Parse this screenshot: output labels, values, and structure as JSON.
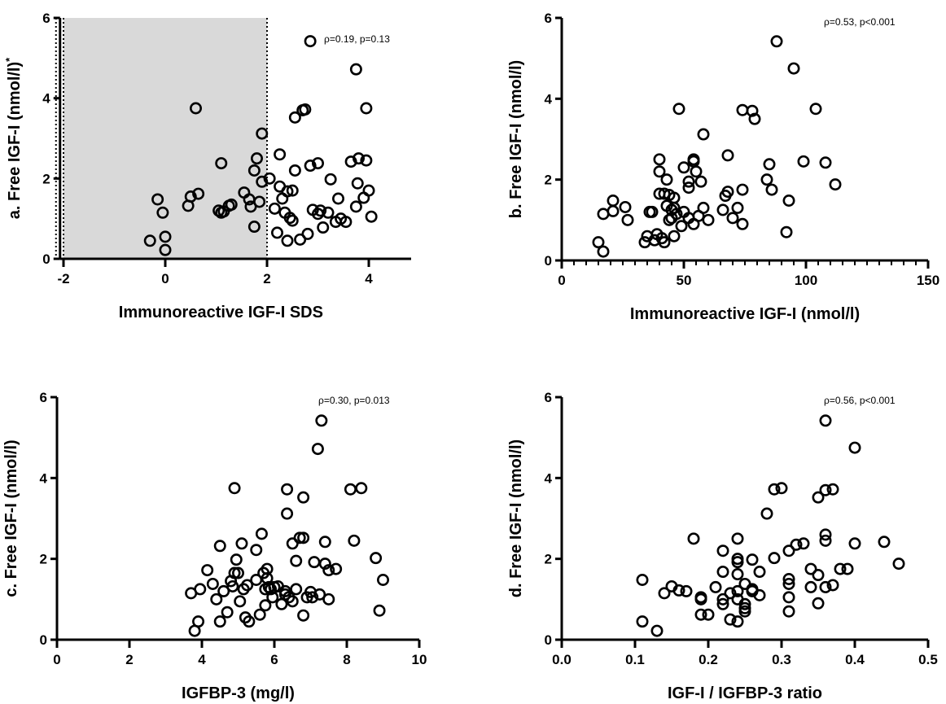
{
  "chart_data": [
    {
      "type": "scatter",
      "id": "a",
      "xlabel": "Immunoreactive IGF-I SDS",
      "ylabel": "a. Free IGF-I (nmol/l)",
      "ylabel_superscript": "*",
      "annotation": "ρ=0.19, p=0.13",
      "xlim": [
        -2.1,
        5.0
      ],
      "ylim": [
        0,
        6
      ],
      "xticks": [
        -2,
        0,
        2,
        4
      ],
      "yticks": [
        0,
        2,
        4,
        6
      ],
      "x_minor_ticks": false,
      "shaded_region": [
        -2,
        2
      ],
      "shaded_color": "#d9d9d9",
      "grid": false,
      "points": [
        {
          "x": -0.15,
          "y": 1.48
        },
        {
          "x": -0.05,
          "y": 1.15
        },
        {
          "x": 0.0,
          "y": 0.55
        },
        {
          "x": 0.0,
          "y": 0.22
        },
        {
          "x": -0.3,
          "y": 0.45
        },
        {
          "x": 0.45,
          "y": 1.32
        },
        {
          "x": 0.5,
          "y": 1.55
        },
        {
          "x": 0.65,
          "y": 1.62
        },
        {
          "x": 0.6,
          "y": 3.75
        },
        {
          "x": 1.05,
          "y": 1.2
        },
        {
          "x": 1.1,
          "y": 1.15
        },
        {
          "x": 1.15,
          "y": 1.18
        },
        {
          "x": 1.25,
          "y": 1.32
        },
        {
          "x": 1.3,
          "y": 1.35
        },
        {
          "x": 1.1,
          "y": 2.38
        },
        {
          "x": 1.55,
          "y": 1.65
        },
        {
          "x": 1.65,
          "y": 1.48
        },
        {
          "x": 1.68,
          "y": 1.3
        },
        {
          "x": 1.75,
          "y": 0.8
        },
        {
          "x": 1.75,
          "y": 2.2
        },
        {
          "x": 1.8,
          "y": 2.5
        },
        {
          "x": 1.85,
          "y": 1.42
        },
        {
          "x": 1.9,
          "y": 3.12
        },
        {
          "x": 1.9,
          "y": 1.92
        },
        {
          "x": 2.05,
          "y": 2.0
        },
        {
          "x": 2.15,
          "y": 1.25
        },
        {
          "x": 2.2,
          "y": 0.65
        },
        {
          "x": 2.25,
          "y": 1.8
        },
        {
          "x": 2.25,
          "y": 2.6
        },
        {
          "x": 2.3,
          "y": 1.5
        },
        {
          "x": 2.35,
          "y": 1.15
        },
        {
          "x": 2.4,
          "y": 1.68
        },
        {
          "x": 2.45,
          "y": 1.02
        },
        {
          "x": 2.4,
          "y": 0.45
        },
        {
          "x": 2.5,
          "y": 0.95
        },
        {
          "x": 2.5,
          "y": 1.7
        },
        {
          "x": 2.55,
          "y": 2.2
        },
        {
          "x": 2.55,
          "y": 3.52
        },
        {
          "x": 2.7,
          "y": 3.7
        },
        {
          "x": 2.75,
          "y": 3.72
        },
        {
          "x": 2.65,
          "y": 0.48
        },
        {
          "x": 2.8,
          "y": 0.62
        },
        {
          "x": 2.85,
          "y": 2.32
        },
        {
          "x": 2.85,
          "y": 5.42
        },
        {
          "x": 2.9,
          "y": 1.22
        },
        {
          "x": 3.0,
          "y": 1.12
        },
        {
          "x": 3.0,
          "y": 2.38
        },
        {
          "x": 3.05,
          "y": 1.2
        },
        {
          "x": 3.1,
          "y": 0.78
        },
        {
          "x": 3.2,
          "y": 1.15
        },
        {
          "x": 3.25,
          "y": 1.98
        },
        {
          "x": 3.35,
          "y": 0.92
        },
        {
          "x": 3.4,
          "y": 1.5
        },
        {
          "x": 3.45,
          "y": 1.0
        },
        {
          "x": 3.55,
          "y": 0.92
        },
        {
          "x": 3.65,
          "y": 2.42
        },
        {
          "x": 3.75,
          "y": 4.72
        },
        {
          "x": 3.75,
          "y": 1.3
        },
        {
          "x": 3.78,
          "y": 1.88
        },
        {
          "x": 3.8,
          "y": 2.5
        },
        {
          "x": 3.9,
          "y": 1.52
        },
        {
          "x": 3.95,
          "y": 2.45
        },
        {
          "x": 3.95,
          "y": 3.75
        },
        {
          "x": 4.0,
          "y": 1.7
        },
        {
          "x": 4.05,
          "y": 1.05
        }
      ]
    },
    {
      "type": "scatter",
      "id": "b",
      "xlabel": "Immunoreactive IGF-I (nmol/l)",
      "ylabel": "b. Free IGF-I (nmol/l)",
      "annotation": "ρ=0.53, p<0.001",
      "xlim": [
        0,
        150
      ],
      "ylim": [
        0,
        6
      ],
      "xticks": [
        0,
        50,
        100,
        150
      ],
      "yticks": [
        0,
        2,
        4,
        6
      ],
      "x_minor_ticks": true,
      "x_minor_step": 5,
      "grid": false,
      "points": [
        {
          "x": 15,
          "y": 0.45
        },
        {
          "x": 17,
          "y": 0.22
        },
        {
          "x": 17,
          "y": 1.15
        },
        {
          "x": 21,
          "y": 1.48
        },
        {
          "x": 21,
          "y": 1.22
        },
        {
          "x": 26,
          "y": 1.32
        },
        {
          "x": 27,
          "y": 1.0
        },
        {
          "x": 34,
          "y": 0.45
        },
        {
          "x": 35,
          "y": 0.6
        },
        {
          "x": 36,
          "y": 1.2
        },
        {
          "x": 37,
          "y": 1.2
        },
        {
          "x": 38,
          "y": 0.5
        },
        {
          "x": 39,
          "y": 0.65
        },
        {
          "x": 40,
          "y": 2.5
        },
        {
          "x": 40,
          "y": 2.2
        },
        {
          "x": 40,
          "y": 1.65
        },
        {
          "x": 41,
          "y": 0.55
        },
        {
          "x": 42,
          "y": 0.45
        },
        {
          "x": 42,
          "y": 1.65
        },
        {
          "x": 43,
          "y": 2.0
        },
        {
          "x": 43,
          "y": 1.35
        },
        {
          "x": 44,
          "y": 1.0
        },
        {
          "x": 44,
          "y": 1.62
        },
        {
          "x": 45,
          "y": 1.25
        },
        {
          "x": 45,
          "y": 1.05
        },
        {
          "x": 46,
          "y": 1.55
        },
        {
          "x": 46,
          "y": 1.3
        },
        {
          "x": 46,
          "y": 0.6
        },
        {
          "x": 47,
          "y": 1.15
        },
        {
          "x": 48,
          "y": 3.75
        },
        {
          "x": 49,
          "y": 0.85
        },
        {
          "x": 50,
          "y": 2.3
        },
        {
          "x": 50,
          "y": 1.2
        },
        {
          "x": 52,
          "y": 1.95
        },
        {
          "x": 52,
          "y": 1.8
        },
        {
          "x": 52,
          "y": 1.05
        },
        {
          "x": 54,
          "y": 2.45
        },
        {
          "x": 54,
          "y": 2.5
        },
        {
          "x": 54,
          "y": 0.9
        },
        {
          "x": 55,
          "y": 2.2
        },
        {
          "x": 56,
          "y": 1.1
        },
        {
          "x": 57,
          "y": 1.95
        },
        {
          "x": 58,
          "y": 3.12
        },
        {
          "x": 58,
          "y": 1.3
        },
        {
          "x": 60,
          "y": 1.0
        },
        {
          "x": 66,
          "y": 1.25
        },
        {
          "x": 67,
          "y": 1.6
        },
        {
          "x": 68,
          "y": 2.6
        },
        {
          "x": 68,
          "y": 1.7
        },
        {
          "x": 70,
          "y": 1.05
        },
        {
          "x": 72,
          "y": 1.3
        },
        {
          "x": 74,
          "y": 3.72
        },
        {
          "x": 74,
          "y": 1.75
        },
        {
          "x": 74,
          "y": 0.9
        },
        {
          "x": 78,
          "y": 3.7
        },
        {
          "x": 79,
          "y": 3.5
        },
        {
          "x": 84,
          "y": 2.0
        },
        {
          "x": 85,
          "y": 2.38
        },
        {
          "x": 86,
          "y": 1.75
        },
        {
          "x": 88,
          "y": 5.42
        },
        {
          "x": 92,
          "y": 0.7
        },
        {
          "x": 93,
          "y": 1.48
        },
        {
          "x": 95,
          "y": 4.75
        },
        {
          "x": 99,
          "y": 2.45
        },
        {
          "x": 104,
          "y": 3.75
        },
        {
          "x": 108,
          "y": 2.42
        },
        {
          "x": 112,
          "y": 1.88
        }
      ]
    },
    {
      "type": "scatter",
      "id": "c",
      "xlabel": "IGFBP-3 (mg/l)",
      "ylabel": "c. Free IGF-I (nmol/l)",
      "annotation": "ρ=0.30, p=0.013",
      "xlim": [
        0,
        10
      ],
      "ylim": [
        0,
        6
      ],
      "xticks": [
        0,
        2,
        4,
        6,
        8,
        10
      ],
      "yticks": [
        0,
        2,
        4,
        6
      ],
      "x_minor_ticks": false,
      "grid": false,
      "points": [
        {
          "x": 3.7,
          "y": 1.15
        },
        {
          "x": 3.8,
          "y": 0.22
        },
        {
          "x": 3.9,
          "y": 0.45
        },
        {
          "x": 3.95,
          "y": 1.25
        },
        {
          "x": 4.15,
          "y": 1.72
        },
        {
          "x": 4.3,
          "y": 1.38
        },
        {
          "x": 4.4,
          "y": 1.0
        },
        {
          "x": 4.5,
          "y": 0.45
        },
        {
          "x": 4.5,
          "y": 2.32
        },
        {
          "x": 4.6,
          "y": 1.2
        },
        {
          "x": 4.7,
          "y": 0.68
        },
        {
          "x": 4.8,
          "y": 1.45
        },
        {
          "x": 4.85,
          "y": 1.32
        },
        {
          "x": 4.9,
          "y": 3.75
        },
        {
          "x": 4.9,
          "y": 1.65
        },
        {
          "x": 4.95,
          "y": 1.98
        },
        {
          "x": 5.0,
          "y": 1.65
        },
        {
          "x": 5.05,
          "y": 0.95
        },
        {
          "x": 5.1,
          "y": 2.38
        },
        {
          "x": 5.15,
          "y": 1.25
        },
        {
          "x": 5.2,
          "y": 0.55
        },
        {
          "x": 5.25,
          "y": 1.35
        },
        {
          "x": 5.3,
          "y": 0.45
        },
        {
          "x": 5.5,
          "y": 2.22
        },
        {
          "x": 5.5,
          "y": 1.48
        },
        {
          "x": 5.6,
          "y": 0.62
        },
        {
          "x": 5.65,
          "y": 2.62
        },
        {
          "x": 5.7,
          "y": 1.65
        },
        {
          "x": 5.75,
          "y": 1.25
        },
        {
          "x": 5.75,
          "y": 0.85
        },
        {
          "x": 5.8,
          "y": 1.75
        },
        {
          "x": 5.8,
          "y": 1.52
        },
        {
          "x": 5.85,
          "y": 1.3
        },
        {
          "x": 5.9,
          "y": 1.25
        },
        {
          "x": 5.95,
          "y": 1.05
        },
        {
          "x": 6.0,
          "y": 1.3
        },
        {
          "x": 6.1,
          "y": 1.32
        },
        {
          "x": 6.2,
          "y": 0.88
        },
        {
          "x": 6.3,
          "y": 1.2
        },
        {
          "x": 6.3,
          "y": 1.12
        },
        {
          "x": 6.35,
          "y": 3.12
        },
        {
          "x": 6.35,
          "y": 3.72
        },
        {
          "x": 6.4,
          "y": 1.05
        },
        {
          "x": 6.5,
          "y": 2.38
        },
        {
          "x": 6.5,
          "y": 0.95
        },
        {
          "x": 6.6,
          "y": 1.25
        },
        {
          "x": 6.6,
          "y": 1.95
        },
        {
          "x": 6.7,
          "y": 2.52
        },
        {
          "x": 6.8,
          "y": 2.52
        },
        {
          "x": 6.8,
          "y": 3.52
        },
        {
          "x": 6.8,
          "y": 0.6
        },
        {
          "x": 6.9,
          "y": 1.05
        },
        {
          "x": 7.0,
          "y": 1.18
        },
        {
          "x": 7.05,
          "y": 1.05
        },
        {
          "x": 7.1,
          "y": 1.92
        },
        {
          "x": 7.2,
          "y": 4.72
        },
        {
          "x": 7.25,
          "y": 1.12
        },
        {
          "x": 7.3,
          "y": 5.42
        },
        {
          "x": 7.4,
          "y": 2.42
        },
        {
          "x": 7.4,
          "y": 1.88
        },
        {
          "x": 7.5,
          "y": 1.72
        },
        {
          "x": 7.5,
          "y": 1.0
        },
        {
          "x": 7.7,
          "y": 1.75
        },
        {
          "x": 8.1,
          "y": 3.72
        },
        {
          "x": 8.2,
          "y": 2.45
        },
        {
          "x": 8.4,
          "y": 3.75
        },
        {
          "x": 8.8,
          "y": 2.02
        },
        {
          "x": 8.9,
          "y": 0.72
        },
        {
          "x": 9.0,
          "y": 1.48
        }
      ]
    },
    {
      "type": "scatter",
      "id": "d",
      "xlabel": "IGF-I / IGFBP-3 ratio",
      "ylabel": "d. Free IGF-I (nmol/l)",
      "annotation": "ρ=0.56, p<0.001",
      "xlim": [
        0,
        0.5
      ],
      "ylim": [
        0,
        6
      ],
      "xticks": [
        "0.0",
        "0.1",
        "0.2",
        "0.3",
        "0.4",
        "0.5"
      ],
      "yticks": [
        0,
        2,
        4,
        6
      ],
      "x_minor_ticks": false,
      "grid": false,
      "points": [
        {
          "x": 0.11,
          "y": 1.48
        },
        {
          "x": 0.11,
          "y": 0.45
        },
        {
          "x": 0.13,
          "y": 0.22
        },
        {
          "x": 0.14,
          "y": 1.15
        },
        {
          "x": 0.15,
          "y": 1.32
        },
        {
          "x": 0.16,
          "y": 1.22
        },
        {
          "x": 0.17,
          "y": 1.2
        },
        {
          "x": 0.18,
          "y": 2.5
        },
        {
          "x": 0.19,
          "y": 1.05
        },
        {
          "x": 0.19,
          "y": 1.0
        },
        {
          "x": 0.19,
          "y": 0.62
        },
        {
          "x": 0.2,
          "y": 0.62
        },
        {
          "x": 0.21,
          "y": 1.3
        },
        {
          "x": 0.22,
          "y": 2.2
        },
        {
          "x": 0.22,
          "y": 1.68
        },
        {
          "x": 0.22,
          "y": 1.0
        },
        {
          "x": 0.22,
          "y": 0.88
        },
        {
          "x": 0.23,
          "y": 0.5
        },
        {
          "x": 0.23,
          "y": 1.15
        },
        {
          "x": 0.24,
          "y": 2.5
        },
        {
          "x": 0.24,
          "y": 2.0
        },
        {
          "x": 0.24,
          "y": 1.92
        },
        {
          "x": 0.24,
          "y": 1.62
        },
        {
          "x": 0.24,
          "y": 1.2
        },
        {
          "x": 0.24,
          "y": 1.0
        },
        {
          "x": 0.24,
          "y": 0.45
        },
        {
          "x": 0.25,
          "y": 1.38
        },
        {
          "x": 0.25,
          "y": 0.88
        },
        {
          "x": 0.25,
          "y": 0.7
        },
        {
          "x": 0.25,
          "y": 0.78
        },
        {
          "x": 0.26,
          "y": 1.98
        },
        {
          "x": 0.26,
          "y": 1.25
        },
        {
          "x": 0.26,
          "y": 1.2
        },
        {
          "x": 0.27,
          "y": 1.68
        },
        {
          "x": 0.27,
          "y": 1.1
        },
        {
          "x": 0.28,
          "y": 3.12
        },
        {
          "x": 0.29,
          "y": 2.02
        },
        {
          "x": 0.29,
          "y": 3.72
        },
        {
          "x": 0.3,
          "y": 3.75
        },
        {
          "x": 0.31,
          "y": 2.2
        },
        {
          "x": 0.31,
          "y": 1.5
        },
        {
          "x": 0.31,
          "y": 1.38
        },
        {
          "x": 0.31,
          "y": 1.05
        },
        {
          "x": 0.31,
          "y": 0.7
        },
        {
          "x": 0.32,
          "y": 2.35
        },
        {
          "x": 0.33,
          "y": 2.38
        },
        {
          "x": 0.34,
          "y": 1.75
        },
        {
          "x": 0.34,
          "y": 1.3
        },
        {
          "x": 0.35,
          "y": 3.52
        },
        {
          "x": 0.35,
          "y": 1.6
        },
        {
          "x": 0.35,
          "y": 0.9
        },
        {
          "x": 0.36,
          "y": 5.42
        },
        {
          "x": 0.36,
          "y": 3.7
        },
        {
          "x": 0.36,
          "y": 2.6
        },
        {
          "x": 0.36,
          "y": 2.45
        },
        {
          "x": 0.36,
          "y": 1.3
        },
        {
          "x": 0.37,
          "y": 3.72
        },
        {
          "x": 0.37,
          "y": 1.35
        },
        {
          "x": 0.38,
          "y": 1.75
        },
        {
          "x": 0.39,
          "y": 1.75
        },
        {
          "x": 0.4,
          "y": 4.75
        },
        {
          "x": 0.4,
          "y": 2.38
        },
        {
          "x": 0.44,
          "y": 2.42
        },
        {
          "x": 0.46,
          "y": 1.88
        }
      ]
    }
  ]
}
